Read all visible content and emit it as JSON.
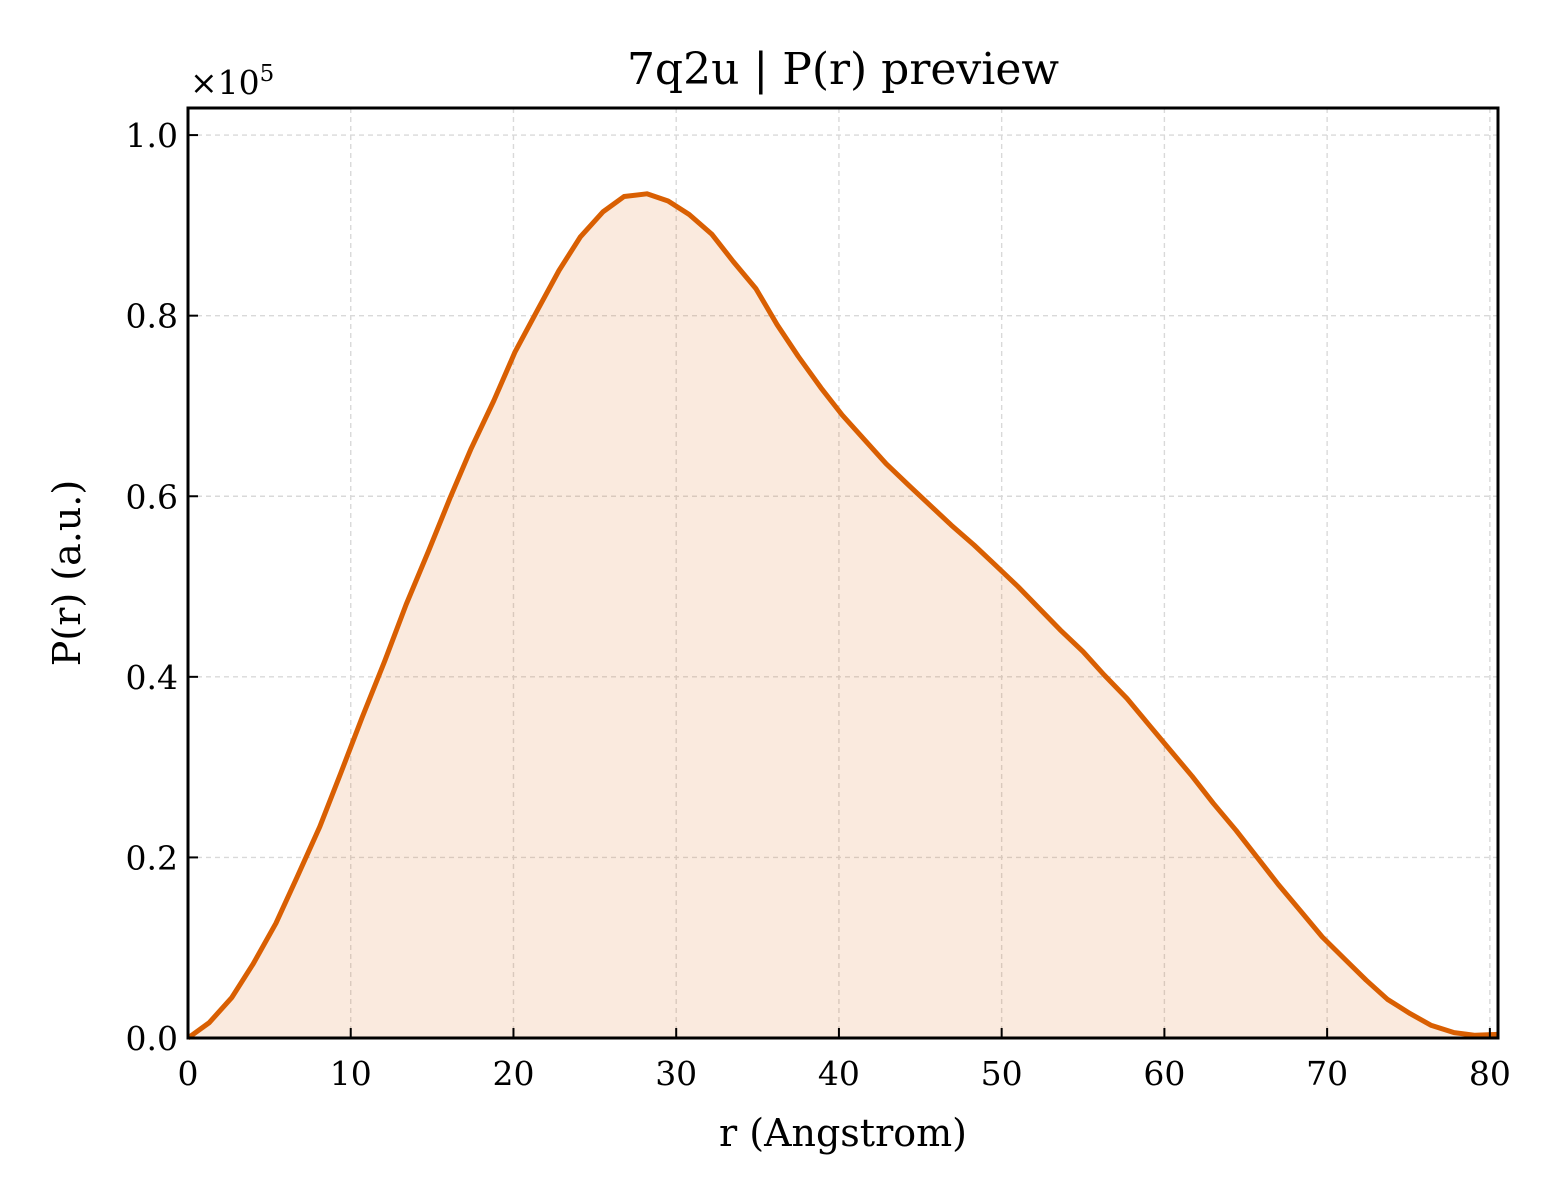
{
  "chart_data": {
    "type": "area",
    "title": "7q2u | P(r) preview",
    "xlabel": "r (Angstrom)",
    "ylabel": "P(r) (a.u.)",
    "y_multiplier": {
      "base": "×10",
      "exponent": "5"
    },
    "xlim": [
      0,
      80.5
    ],
    "ylim": [
      0,
      1.03
    ],
    "xticks": [
      0,
      10,
      20,
      30,
      40,
      50,
      60,
      70,
      80
    ],
    "xtick_labels": [
      "0",
      "10",
      "20",
      "30",
      "40",
      "50",
      "60",
      "70",
      "80"
    ],
    "yticks": [
      0,
      0.2,
      0.4,
      0.6,
      0.8,
      1.0
    ],
    "ytick_labels": [
      "0.0",
      "0.2",
      "0.4",
      "0.6",
      "0.8",
      "1.0"
    ],
    "grid": true,
    "colors": {
      "line": "#d95f02",
      "fill": "#d95f02"
    },
    "series": [
      {
        "x": [
          0,
          1.3,
          2.7,
          4.0,
          5.4,
          6.7,
          8.1,
          9.4,
          10.7,
          12.1,
          13.4,
          14.8,
          16.1,
          17.4,
          18.8,
          20.1,
          21.5,
          22.8,
          24.1,
          25.5,
          26.8,
          28.2,
          29.5,
          30.8,
          32.2,
          33.5,
          34.9,
          36.2,
          37.5,
          38.9,
          40.2,
          41.6,
          42.9,
          44.3,
          45.6,
          46.9,
          48.3,
          49.6,
          51.0,
          52.3,
          53.6,
          55.0,
          56.3,
          57.7,
          59.0,
          60.3,
          61.7,
          63.0,
          64.4,
          65.7,
          67.0,
          68.4,
          69.7,
          71.1,
          72.4,
          73.7,
          75.1,
          76.4,
          77.8,
          79.1,
          80.5
        ],
        "y": [
          0.0,
          0.017,
          0.045,
          0.082,
          0.127,
          0.178,
          0.234,
          0.294,
          0.355,
          0.418,
          0.48,
          0.54,
          0.598,
          0.653,
          0.706,
          0.76,
          0.807,
          0.85,
          0.887,
          0.915,
          0.932,
          0.935,
          0.927,
          0.912,
          0.89,
          0.86,
          0.83,
          0.79,
          0.755,
          0.72,
          0.69,
          0.662,
          0.636,
          0.612,
          0.59,
          0.568,
          0.546,
          0.524,
          0.5,
          0.476,
          0.452,
          0.428,
          0.402,
          0.376,
          0.348,
          0.32,
          0.29,
          0.26,
          0.23,
          0.2,
          0.17,
          0.14,
          0.112,
          0.087,
          0.064,
          0.043,
          0.027,
          0.014,
          0.006,
          0.003,
          0.004
        ]
      }
    ]
  }
}
